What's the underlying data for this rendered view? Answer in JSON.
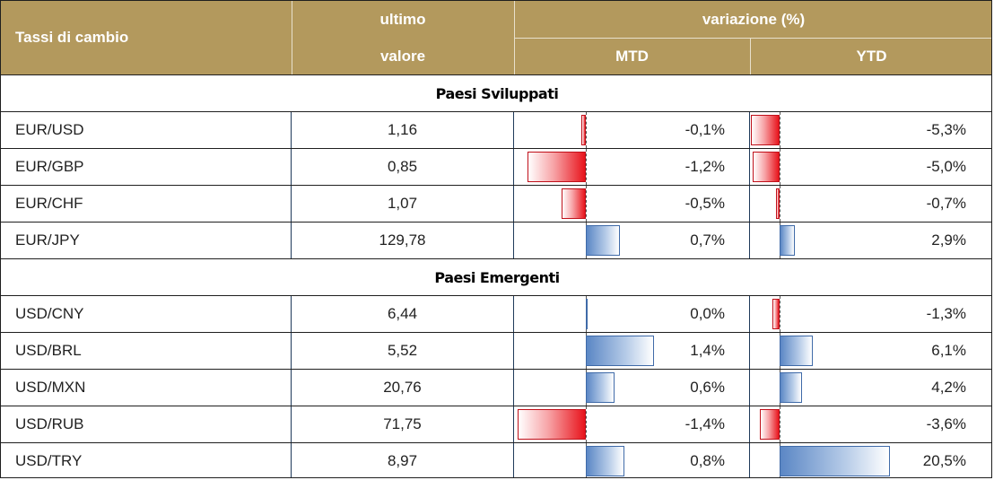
{
  "header": {
    "col_name": "Tassi di cambio",
    "col_value_line1": "ultimo",
    "col_value_line2": "valore",
    "col_change": "variazione (%)",
    "col_mtd": "MTD",
    "col_ytd": "YTD"
  },
  "colors": {
    "header_bg": "#b3995d",
    "negative_bar": "#e8141c",
    "positive_bar": "#5b87c5"
  },
  "sections": [
    {
      "title": "Paesi Sviluppati",
      "rows": [
        {
          "pair": "EUR/USD",
          "value": "1,16",
          "mtd": "-0,1%",
          "mtd_num": -0.1,
          "ytd": "-5,3%",
          "ytd_num": -5.3
        },
        {
          "pair": "EUR/GBP",
          "value": "0,85",
          "mtd": "-1,2%",
          "mtd_num": -1.2,
          "ytd": "-5,0%",
          "ytd_num": -5.0
        },
        {
          "pair": "EUR/CHF",
          "value": "1,07",
          "mtd": "-0,5%",
          "mtd_num": -0.5,
          "ytd": "-0,7%",
          "ytd_num": -0.7
        },
        {
          "pair": "EUR/JPY",
          "value": "129,78",
          "mtd": "0,7%",
          "mtd_num": 0.7,
          "ytd": "2,9%",
          "ytd_num": 2.9
        }
      ]
    },
    {
      "title": "Paesi Emergenti",
      "rows": [
        {
          "pair": "USD/CNY",
          "value": "6,44",
          "mtd": "0,0%",
          "mtd_num": 0.0,
          "ytd": "-1,3%",
          "ytd_num": -1.3
        },
        {
          "pair": "USD/BRL",
          "value": "5,52",
          "mtd": "1,4%",
          "mtd_num": 1.4,
          "ytd": "6,1%",
          "ytd_num": 6.1
        },
        {
          "pair": "USD/MXN",
          "value": "20,76",
          "mtd": "0,6%",
          "mtd_num": 0.6,
          "ytd": "4,2%",
          "ytd_num": 4.2
        },
        {
          "pair": "USD/RUB",
          "value": "71,75",
          "mtd": "-1,4%",
          "mtd_num": -1.4,
          "ytd": "-3,6%",
          "ytd_num": -3.6
        },
        {
          "pair": "USD/TRY",
          "value": "8,97",
          "mtd": "0,8%",
          "mtd_num": 0.8,
          "ytd": "20,5%",
          "ytd_num": 20.5
        }
      ]
    }
  ]
}
